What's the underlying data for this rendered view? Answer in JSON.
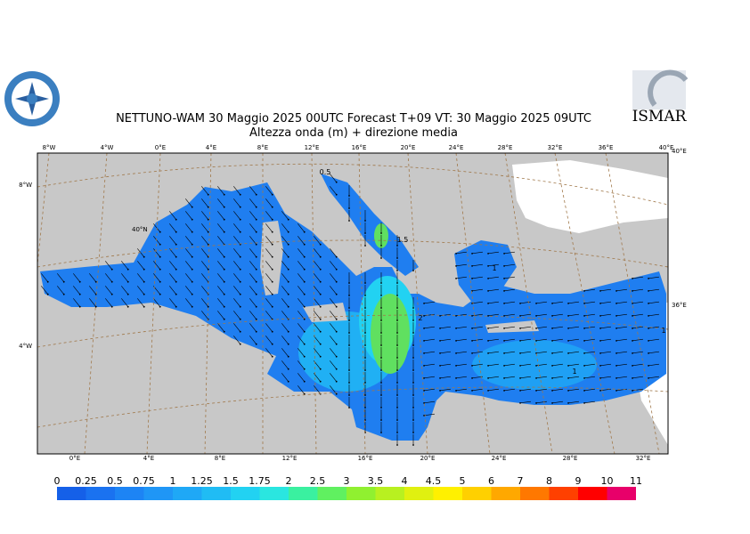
{
  "header": {
    "title": "NETTUNO-WAM  30   Maggio  2025 00UTC Forecast T+09 VT: 30   Maggio  2025 09UTC",
    "subtitle": "Altezza onda (m) + direzione media"
  },
  "logo": "ISMAR",
  "map": {
    "top_labels": [
      "8°W",
      "4°W",
      "0°E",
      "4°E",
      "8°E",
      "12°E",
      "16°E",
      "20°E",
      "24°E",
      "28°E",
      "32°E",
      "36°E",
      "40°E"
    ],
    "bottom_labels": [
      "0°E",
      "4°E",
      "8°E",
      "12°E",
      "16°E",
      "20°E",
      "24°E",
      "28°E",
      "32°E"
    ],
    "left_labels": [
      "8°W",
      "4°W"
    ],
    "right_labels": [
      "40°E",
      "36°E"
    ],
    "inner_label": "40°N",
    "contour_labels": [
      "0.5",
      "1.5",
      "1",
      "2",
      "1",
      "1"
    ]
  },
  "legend": {
    "labels": [
      "0",
      "0.25",
      "0.5",
      "0.75",
      "1",
      "1.25",
      "1.5",
      "1.75",
      "2",
      "2.5",
      "3",
      "3.5",
      "4",
      "4.5",
      "5",
      "6",
      "7",
      "8",
      "9",
      "10",
      "11"
    ],
    "colors": [
      "#1560e8",
      "#1a72f0",
      "#1d84f4",
      "#1f96f6",
      "#1fa8f6",
      "#20bcf4",
      "#22d2f2",
      "#2ae6e0",
      "#3af0a0",
      "#60f060",
      "#90f030",
      "#b8f020",
      "#e0f010",
      "#fff000",
      "#ffd000",
      "#ffa800",
      "#ff7800",
      "#ff4000",
      "#ff0000",
      "#e8006a",
      "#ff30c0"
    ]
  }
}
